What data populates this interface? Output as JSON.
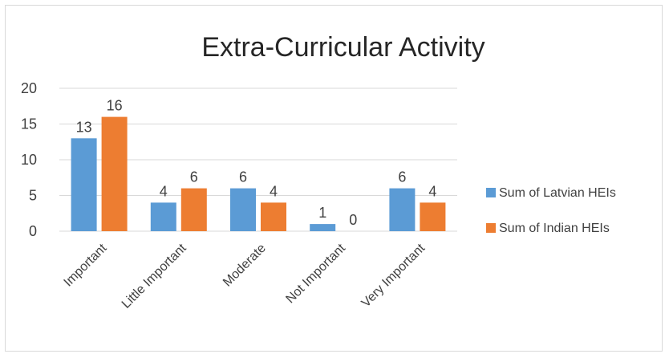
{
  "chart_data": {
    "type": "bar",
    "title": "Extra-Curricular Activity",
    "categories": [
      "Important",
      "Little Important",
      "Moderate",
      "Not Important",
      "Very Important"
    ],
    "series": [
      {
        "name": "Sum of Latvian HEIs",
        "values": [
          13,
          4,
          6,
          1,
          6
        ],
        "color": "#5b9bd5"
      },
      {
        "name": "Sum of Indian HEIs",
        "values": [
          16,
          6,
          4,
          0,
          4
        ],
        "color": "#ed7d31"
      }
    ],
    "ylim": [
      0,
      20
    ],
    "yticks": [
      0,
      5,
      10,
      15,
      20
    ],
    "grid": true,
    "legend_position": "right",
    "data_labels": true
  }
}
